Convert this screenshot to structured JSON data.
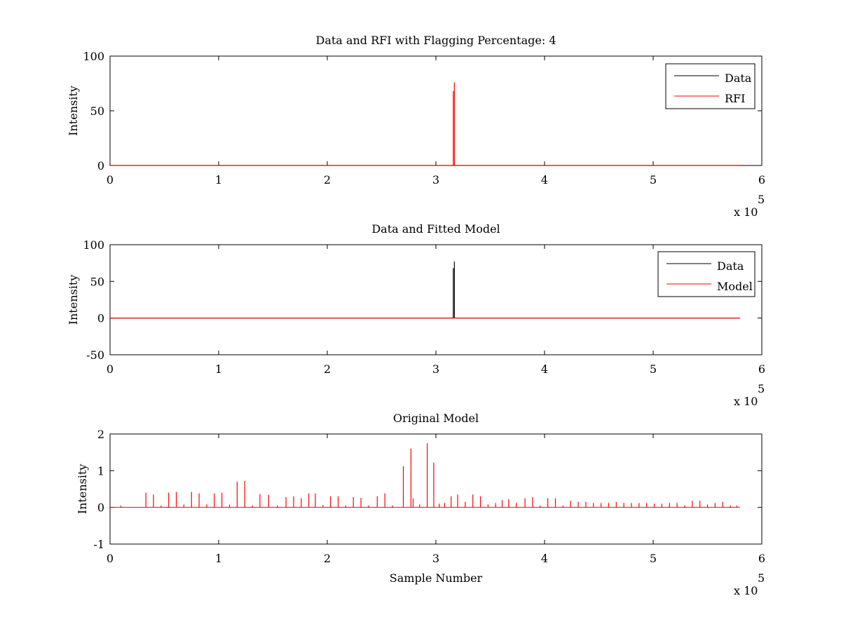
{
  "figure": {
    "background": "#ffffff"
  },
  "chart_data": [
    {
      "type": "line",
      "title": "Data and RFI with Flagging Percentage: 4",
      "xlabel": "",
      "ylabel": "Intensity",
      "xlim": [
        0,
        600000
      ],
      "ylim": [
        0,
        100
      ],
      "xticks": [
        "0",
        "1",
        "2",
        "3",
        "4",
        "5",
        "6"
      ],
      "yticks": [
        "0",
        "50",
        "100"
      ],
      "x_exponent": {
        "base": "x 10",
        "power": "5"
      },
      "legend": "top-right",
      "grid": false,
      "series": [
        {
          "name": "Data",
          "color": "#000000",
          "x": [
            0,
            580000
          ],
          "y": [
            0,
            0
          ]
        },
        {
          "name": "RFI",
          "color": "#ff0000",
          "spikes": [
            {
              "x": 316000,
              "y": 68
            },
            {
              "x": 317000,
              "y": 76
            }
          ]
        }
      ]
    },
    {
      "type": "line",
      "title": "Data and Fitted Model",
      "xlabel": "",
      "ylabel": "Intensity",
      "xlim": [
        0,
        600000
      ],
      "ylim": [
        -50,
        100
      ],
      "xticks": [
        "0",
        "1",
        "2",
        "3",
        "4",
        "5",
        "6"
      ],
      "yticks": [
        "-50",
        "0",
        "50",
        "100"
      ],
      "x_exponent": {
        "base": "x 10",
        "power": "5"
      },
      "legend": "top-right",
      "grid": false,
      "series": [
        {
          "name": "Data",
          "color": "#000000",
          "spikes": [
            {
              "x": 316000,
              "y": 68
            },
            {
              "x": 317000,
              "y": 77
            }
          ]
        },
        {
          "name": "Model",
          "color": "#ff0000",
          "x": [
            0,
            580000
          ],
          "y": [
            0,
            0
          ]
        }
      ]
    },
    {
      "type": "line",
      "title": "Original Model",
      "xlabel": "Sample Number",
      "ylabel": "Intensity",
      "xlim": [
        0,
        600000
      ],
      "ylim": [
        -1,
        2
      ],
      "xticks": [
        "0",
        "1",
        "2",
        "3",
        "4",
        "5",
        "6"
      ],
      "yticks": [
        "-1",
        "0",
        "1",
        "2"
      ],
      "x_exponent": {
        "base": "x 10",
        "power": "5"
      },
      "grid": false,
      "series": [
        {
          "color": "#ff0000",
          "spikes": [
            {
              "x": 10000,
              "y": 0.05
            },
            {
              "x": 33000,
              "y": 0.4
            },
            {
              "x": 40000,
              "y": 0.35
            },
            {
              "x": 47000,
              "y": 0.05
            },
            {
              "x": 54000,
              "y": 0.4
            },
            {
              "x": 61000,
              "y": 0.42
            },
            {
              "x": 68000,
              "y": 0.08
            },
            {
              "x": 75000,
              "y": 0.42
            },
            {
              "x": 82000,
              "y": 0.38
            },
            {
              "x": 89000,
              "y": 0.08
            },
            {
              "x": 96000,
              "y": 0.38
            },
            {
              "x": 103000,
              "y": 0.4
            },
            {
              "x": 110000,
              "y": 0.08
            },
            {
              "x": 117000,
              "y": 0.7
            },
            {
              "x": 124000,
              "y": 0.72
            },
            {
              "x": 131000,
              "y": 0.05
            },
            {
              "x": 138000,
              "y": 0.36
            },
            {
              "x": 146000,
              "y": 0.34
            },
            {
              "x": 154000,
              "y": 0.05
            },
            {
              "x": 162000,
              "y": 0.28
            },
            {
              "x": 169000,
              "y": 0.3
            },
            {
              "x": 176000,
              "y": 0.25
            },
            {
              "x": 183000,
              "y": 0.38
            },
            {
              "x": 189000,
              "y": 0.38
            },
            {
              "x": 196000,
              "y": 0.06
            },
            {
              "x": 203000,
              "y": 0.3
            },
            {
              "x": 210000,
              "y": 0.3
            },
            {
              "x": 217000,
              "y": 0.05
            },
            {
              "x": 224000,
              "y": 0.28
            },
            {
              "x": 231000,
              "y": 0.26
            },
            {
              "x": 238000,
              "y": 0.05
            },
            {
              "x": 246000,
              "y": 0.3
            },
            {
              "x": 253000,
              "y": 0.38
            },
            {
              "x": 260000,
              "y": 0.05
            },
            {
              "x": 270000,
              "y": 1.12
            },
            {
              "x": 277000,
              "y": 1.6
            },
            {
              "x": 279000,
              "y": 0.25
            },
            {
              "x": 285000,
              "y": 0.08
            },
            {
              "x": 292000,
              "y": 1.75
            },
            {
              "x": 298000,
              "y": 1.22
            },
            {
              "x": 303000,
              "y": 0.1
            },
            {
              "x": 308000,
              "y": 0.12
            },
            {
              "x": 314000,
              "y": 0.3
            },
            {
              "x": 320000,
              "y": 0.35
            },
            {
              "x": 327000,
              "y": 0.15
            },
            {
              "x": 334000,
              "y": 0.35
            },
            {
              "x": 341000,
              "y": 0.3
            },
            {
              "x": 348000,
              "y": 0.08
            },
            {
              "x": 355000,
              "y": 0.12
            },
            {
              "x": 361000,
              "y": 0.2
            },
            {
              "x": 367000,
              "y": 0.22
            },
            {
              "x": 374000,
              "y": 0.12
            },
            {
              "x": 382000,
              "y": 0.25
            },
            {
              "x": 389000,
              "y": 0.28
            },
            {
              "x": 396000,
              "y": 0.05
            },
            {
              "x": 403000,
              "y": 0.25
            },
            {
              "x": 410000,
              "y": 0.25
            },
            {
              "x": 417000,
              "y": 0.05
            },
            {
              "x": 424000,
              "y": 0.18
            },
            {
              "x": 431000,
              "y": 0.15
            },
            {
              "x": 438000,
              "y": 0.15
            },
            {
              "x": 445000,
              "y": 0.12
            },
            {
              "x": 452000,
              "y": 0.12
            },
            {
              "x": 459000,
              "y": 0.12
            },
            {
              "x": 466000,
              "y": 0.15
            },
            {
              "x": 473000,
              "y": 0.12
            },
            {
              "x": 480000,
              "y": 0.12
            },
            {
              "x": 487000,
              "y": 0.12
            },
            {
              "x": 494000,
              "y": 0.12
            },
            {
              "x": 501000,
              "y": 0.1
            },
            {
              "x": 508000,
              "y": 0.1
            },
            {
              "x": 515000,
              "y": 0.12
            },
            {
              "x": 522000,
              "y": 0.12
            },
            {
              "x": 529000,
              "y": 0.05
            },
            {
              "x": 536000,
              "y": 0.18
            },
            {
              "x": 543000,
              "y": 0.18
            },
            {
              "x": 550000,
              "y": 0.08
            },
            {
              "x": 557000,
              "y": 0.12
            },
            {
              "x": 564000,
              "y": 0.15
            },
            {
              "x": 571000,
              "y": 0.05
            },
            {
              "x": 577000,
              "y": 0.05
            }
          ]
        }
      ]
    }
  ]
}
